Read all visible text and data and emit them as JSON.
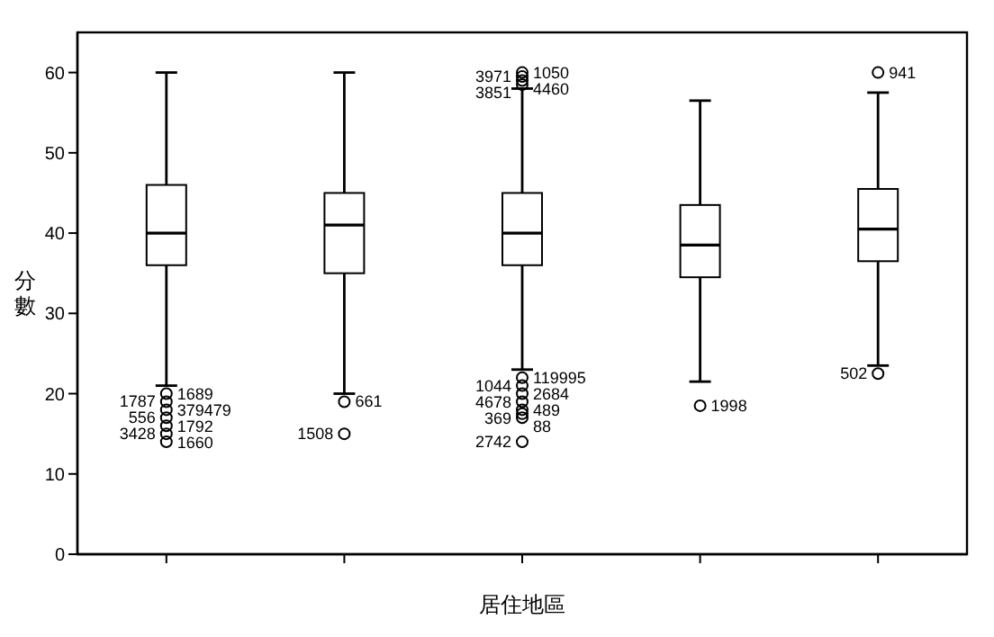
{
  "chart_data": {
    "type": "box",
    "ylabel": "分數",
    "xlabel": "居住地區",
    "categories": [
      null,
      null,
      null,
      null,
      null
    ],
    "ylim": [
      0,
      65
    ],
    "yticks": [
      0,
      10,
      20,
      30,
      40,
      50,
      60
    ],
    "boxes": [
      {
        "low": 21,
        "q1": 36,
        "median": 40,
        "q3": 46,
        "high": 60,
        "outliers": [
          20,
          19,
          18,
          17,
          16,
          15,
          14
        ]
      },
      {
        "low": 20,
        "q1": 35,
        "median": 41,
        "q3": 45,
        "high": 60,
        "outliers": [
          19,
          15
        ]
      },
      {
        "low": 23,
        "q1": 36,
        "median": 40,
        "q3": 45,
        "high": 58,
        "outliers": [
          60,
          59.5,
          59,
          58.5,
          22,
          21,
          20,
          19,
          18,
          17.5,
          17,
          14
        ]
      },
      {
        "low": 21.5,
        "q1": 34.5,
        "median": 38.5,
        "q3": 43.5,
        "high": 56.5,
        "outliers": [
          18.5
        ]
      },
      {
        "low": 23.5,
        "q1": 36.5,
        "median": 40.5,
        "q3": 45.5,
        "high": 57.5,
        "outliers": [
          60,
          22.5
        ]
      }
    ],
    "annotations": [
      "1689",
      "1787",
      "379479",
      "556",
      "1792",
      "3428",
      "1660",
      "661",
      "1508",
      "1050",
      "3971",
      "4460",
      "3851",
      "119995",
      "1044",
      "2684",
      "4678",
      "489",
      "369",
      "88",
      "2742",
      "1998",
      "941",
      "502"
    ]
  }
}
